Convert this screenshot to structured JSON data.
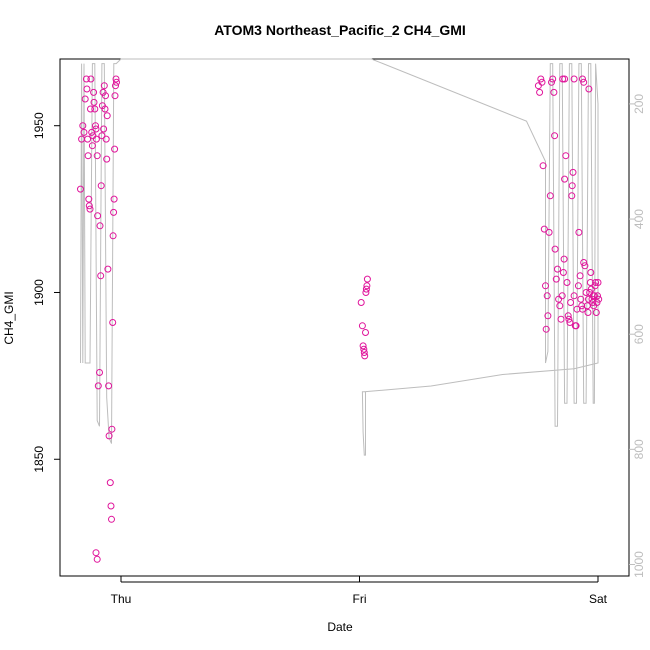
{
  "chart_data": {
    "type": "scatter",
    "title": "ATOM3 Northeast_Pacific_2 CH4_GMI",
    "xlabel": "Date",
    "ylabel": "CH4_GMI",
    "x_ticks": [
      {
        "label": "Thu",
        "day": 0
      },
      {
        "label": "Fri",
        "day": 1
      },
      {
        "label": "Sat",
        "day": 2
      }
    ],
    "y_ticks": [
      1850,
      1900,
      1950
    ],
    "y_range": [
      1815,
      1970
    ],
    "right_axis": {
      "ticks": [
        200,
        400,
        600,
        800,
        1000
      ],
      "range": [
        122,
        1020
      ],
      "inverted": true,
      "color": "#bdbdbd"
    },
    "point_color": "#e0149b",
    "line_color": "#bdbdbd",
    "series": [
      {
        "values": [
          [
            -0.17,
            1931
          ],
          [
            -0.165,
            1946
          ],
          [
            -0.16,
            1950
          ],
          [
            -0.155,
            1948
          ],
          [
            -0.15,
            1958
          ],
          [
            -0.145,
            1964
          ],
          [
            -0.143,
            1961
          ],
          [
            -0.14,
            1946
          ],
          [
            -0.138,
            1941
          ],
          [
            -0.135,
            1928
          ],
          [
            -0.133,
            1926
          ],
          [
            -0.13,
            1925
          ],
          [
            -0.128,
            1955
          ],
          [
            -0.126,
            1964
          ],
          [
            -0.123,
            1948
          ],
          [
            -0.12,
            1944
          ],
          [
            -0.118,
            1947
          ],
          [
            -0.115,
            1960
          ],
          [
            -0.113,
            1957
          ],
          [
            -0.11,
            1955
          ],
          [
            -0.107,
            1950
          ],
          [
            -0.105,
            1949
          ],
          [
            -0.103,
            1946
          ],
          [
            -0.1,
            1941
          ],
          [
            -0.098,
            1923
          ],
          [
            -0.095,
            1872
          ],
          [
            -0.09,
            1876
          ],
          [
            -0.088,
            1920
          ],
          [
            -0.085,
            1905
          ],
          [
            -0.083,
            1932
          ],
          [
            -0.08,
            1947
          ],
          [
            -0.078,
            1956
          ],
          [
            -0.075,
            1960
          ],
          [
            -0.073,
            1949
          ],
          [
            -0.07,
            1962
          ],
          [
            -0.067,
            1955
          ],
          [
            -0.065,
            1959
          ],
          [
            -0.062,
            1946
          ],
          [
            -0.06,
            1940
          ],
          [
            -0.058,
            1953
          ],
          [
            -0.055,
            1907
          ],
          [
            -0.052,
            1872
          ],
          [
            -0.05,
            1857
          ],
          [
            -0.045,
            1843
          ],
          [
            -0.042,
            1836
          ],
          [
            -0.04,
            1832
          ],
          [
            -0.038,
            1859
          ],
          [
            -0.035,
            1891
          ],
          [
            -0.033,
            1917
          ],
          [
            -0.031,
            1924
          ],
          [
            -0.029,
            1928
          ],
          [
            -0.027,
            1943
          ],
          [
            -0.025,
            1959
          ],
          [
            -0.023,
            1962
          ],
          [
            -0.021,
            1964
          ],
          [
            -0.019,
            1963
          ],
          [
            -0.105,
            1822
          ],
          [
            -0.1,
            1820
          ]
        ]
      },
      {
        "values": [
          [
            1.007,
            1897
          ],
          [
            1.012,
            1890
          ],
          [
            1.015,
            1884
          ],
          [
            1.018,
            1883
          ],
          [
            1.02,
            1882
          ],
          [
            1.022,
            1881
          ],
          [
            1.025,
            1888
          ],
          [
            1.027,
            1900
          ],
          [
            1.029,
            1901
          ],
          [
            1.031,
            1902
          ],
          [
            1.033,
            1904
          ]
        ]
      },
      {
        "values": [
          [
            1.77,
            1938
          ],
          [
            1.775,
            1919
          ],
          [
            1.78,
            1902
          ],
          [
            1.783,
            1889
          ],
          [
            1.787,
            1899
          ],
          [
            1.79,
            1893
          ],
          [
            1.795,
            1918
          ],
          [
            1.8,
            1929
          ],
          [
            1.805,
            1963
          ],
          [
            1.81,
            1964
          ],
          [
            1.815,
            1960
          ],
          [
            1.818,
            1947
          ],
          [
            1.82,
            1913
          ],
          [
            1.825,
            1904
          ],
          [
            1.83,
            1907
          ],
          [
            1.835,
            1898
          ],
          [
            1.84,
            1896
          ],
          [
            1.845,
            1892
          ],
          [
            1.85,
            1899
          ],
          [
            1.855,
            1906
          ],
          [
            1.858,
            1910
          ],
          [
            1.86,
            1934
          ],
          [
            1.865,
            1941
          ],
          [
            1.87,
            1903
          ],
          [
            1.875,
            1893
          ],
          [
            1.878,
            1892
          ],
          [
            1.882,
            1891
          ],
          [
            1.885,
            1897
          ],
          [
            1.89,
            1929
          ],
          [
            1.892,
            1932
          ],
          [
            1.895,
            1936
          ],
          [
            1.9,
            1899
          ],
          [
            1.905,
            1890
          ],
          [
            1.908,
            1890
          ],
          [
            1.912,
            1895
          ],
          [
            1.918,
            1902
          ],
          [
            1.92,
            1918
          ],
          [
            1.925,
            1905
          ],
          [
            1.928,
            1898
          ],
          [
            1.932,
            1896
          ],
          [
            1.935,
            1895
          ],
          [
            1.94,
            1909
          ],
          [
            1.945,
            1908
          ],
          [
            1.95,
            1900
          ],
          [
            1.955,
            1896
          ],
          [
            1.958,
            1894
          ],
          [
            1.96,
            1898
          ],
          [
            1.965,
            1900
          ],
          [
            1.968,
            1903
          ],
          [
            1.97,
            1906
          ],
          [
            1.972,
            1901
          ],
          [
            1.975,
            1898
          ],
          [
            1.978,
            1897
          ],
          [
            1.98,
            1899
          ],
          [
            1.982,
            1896
          ],
          [
            1.985,
            1899
          ],
          [
            1.988,
            1902
          ],
          [
            1.99,
            1903
          ],
          [
            1.993,
            1894
          ],
          [
            1.996,
            1897
          ],
          [
            1.998,
            1899
          ],
          [
            2.0,
            1903
          ],
          [
            2.003,
            1898
          ],
          [
            1.75,
            1962
          ],
          [
            1.755,
            1960
          ],
          [
            1.76,
            1964
          ],
          [
            1.765,
            1963
          ],
          [
            1.852,
            1964
          ],
          [
            1.86,
            1964
          ],
          [
            1.9,
            1964
          ],
          [
            1.935,
            1964
          ],
          [
            1.94,
            1963
          ],
          [
            1.962,
            1961
          ]
        ]
      }
    ]
  }
}
